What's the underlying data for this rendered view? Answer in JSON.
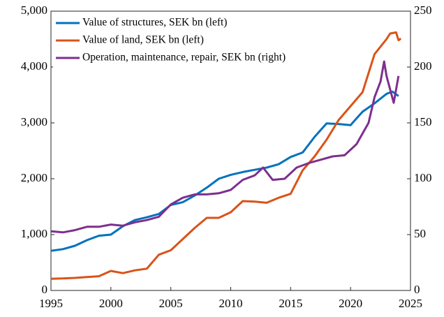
{
  "chart_data": {
    "type": "line",
    "xlim": [
      1995,
      2025
    ],
    "xticks": [
      1995,
      2000,
      2005,
      2010,
      2015,
      2020,
      2025
    ],
    "ylim": [
      0,
      5000
    ],
    "yticks": [
      0,
      {
        "value": 1000,
        "label": "1,000"
      },
      {
        "value": 2000,
        "label": "2,000"
      },
      {
        "value": 3000,
        "label": "3,000"
      },
      {
        "value": 4000,
        "label": "4,000"
      },
      {
        "value": 5000,
        "label": "5,000"
      }
    ],
    "y2lim": [
      0,
      250
    ],
    "y2ticks": [
      0,
      50,
      100,
      150,
      200,
      250
    ],
    "legend": "upper left",
    "series": [
      {
        "name": "Value of structures, SEK bn (left)",
        "color": "#0072bd",
        "x": [
          1995,
          1996,
          1997,
          1998,
          1999,
          2000,
          2001,
          2002,
          2003,
          2004,
          2005,
          2006,
          2007,
          2008,
          2009,
          2010,
          2011,
          2012,
          2013,
          2014,
          2015,
          2016,
          2017,
          2018,
          2019,
          2020,
          2021,
          2022,
          2023,
          2023.5,
          2024
        ],
        "values": [
          710,
          740,
          800,
          900,
          980,
          1000,
          1150,
          1260,
          1310,
          1370,
          1530,
          1580,
          1700,
          1840,
          2000,
          2070,
          2120,
          2160,
          2200,
          2260,
          2390,
          2470,
          2750,
          2990,
          2980,
          2960,
          3200,
          3350,
          3520,
          3560,
          3480
        ]
      },
      {
        "name": "Value of land, SEK bn (left)",
        "color": "#d95319",
        "x": [
          1995,
          1996,
          1997,
          1998,
          1999,
          2000,
          2001,
          2002,
          2003,
          2004,
          2005,
          2006,
          2007,
          2008,
          2009,
          2010,
          2011,
          2012,
          2013,
          2014,
          2015,
          2016,
          2017,
          2018,
          2019,
          2020,
          2021,
          2022,
          2023,
          2023.3,
          2023.8,
          2024,
          2024.2
        ],
        "values": [
          210,
          215,
          225,
          240,
          255,
          350,
          310,
          360,
          390,
          640,
          720,
          920,
          1120,
          1300,
          1300,
          1400,
          1600,
          1590,
          1570,
          1660,
          1730,
          2150,
          2400,
          2700,
          3050,
          3300,
          3550,
          4230,
          4500,
          4600,
          4620,
          4480,
          4510
        ]
      },
      {
        "name": "Operation, maintenance, repair, SEK bn (right)",
        "color": "#7e2f8e",
        "axis": "y2",
        "x": [
          1995,
          1996,
          1997,
          1998,
          1999,
          2000,
          2001,
          2002,
          2003,
          2004,
          2005,
          2006,
          2007,
          2008,
          2009,
          2010,
          2011,
          2012,
          2012.7,
          2013.5,
          2014.5,
          2015.5,
          2016.5,
          2017.5,
          2018.5,
          2019.5,
          2020.5,
          2021.5,
          2022,
          2022.5,
          2022.8,
          2023,
          2023.3,
          2023.6,
          2024
        ],
        "values": [
          53,
          52,
          54,
          57,
          57,
          59,
          58,
          61,
          63,
          66,
          77,
          83,
          86,
          86,
          87,
          90,
          99,
          103,
          110,
          99,
          100,
          110,
          114,
          117,
          120,
          121,
          131,
          150,
          173,
          187,
          205,
          192,
          180,
          168,
          192
        ]
      }
    ]
  }
}
